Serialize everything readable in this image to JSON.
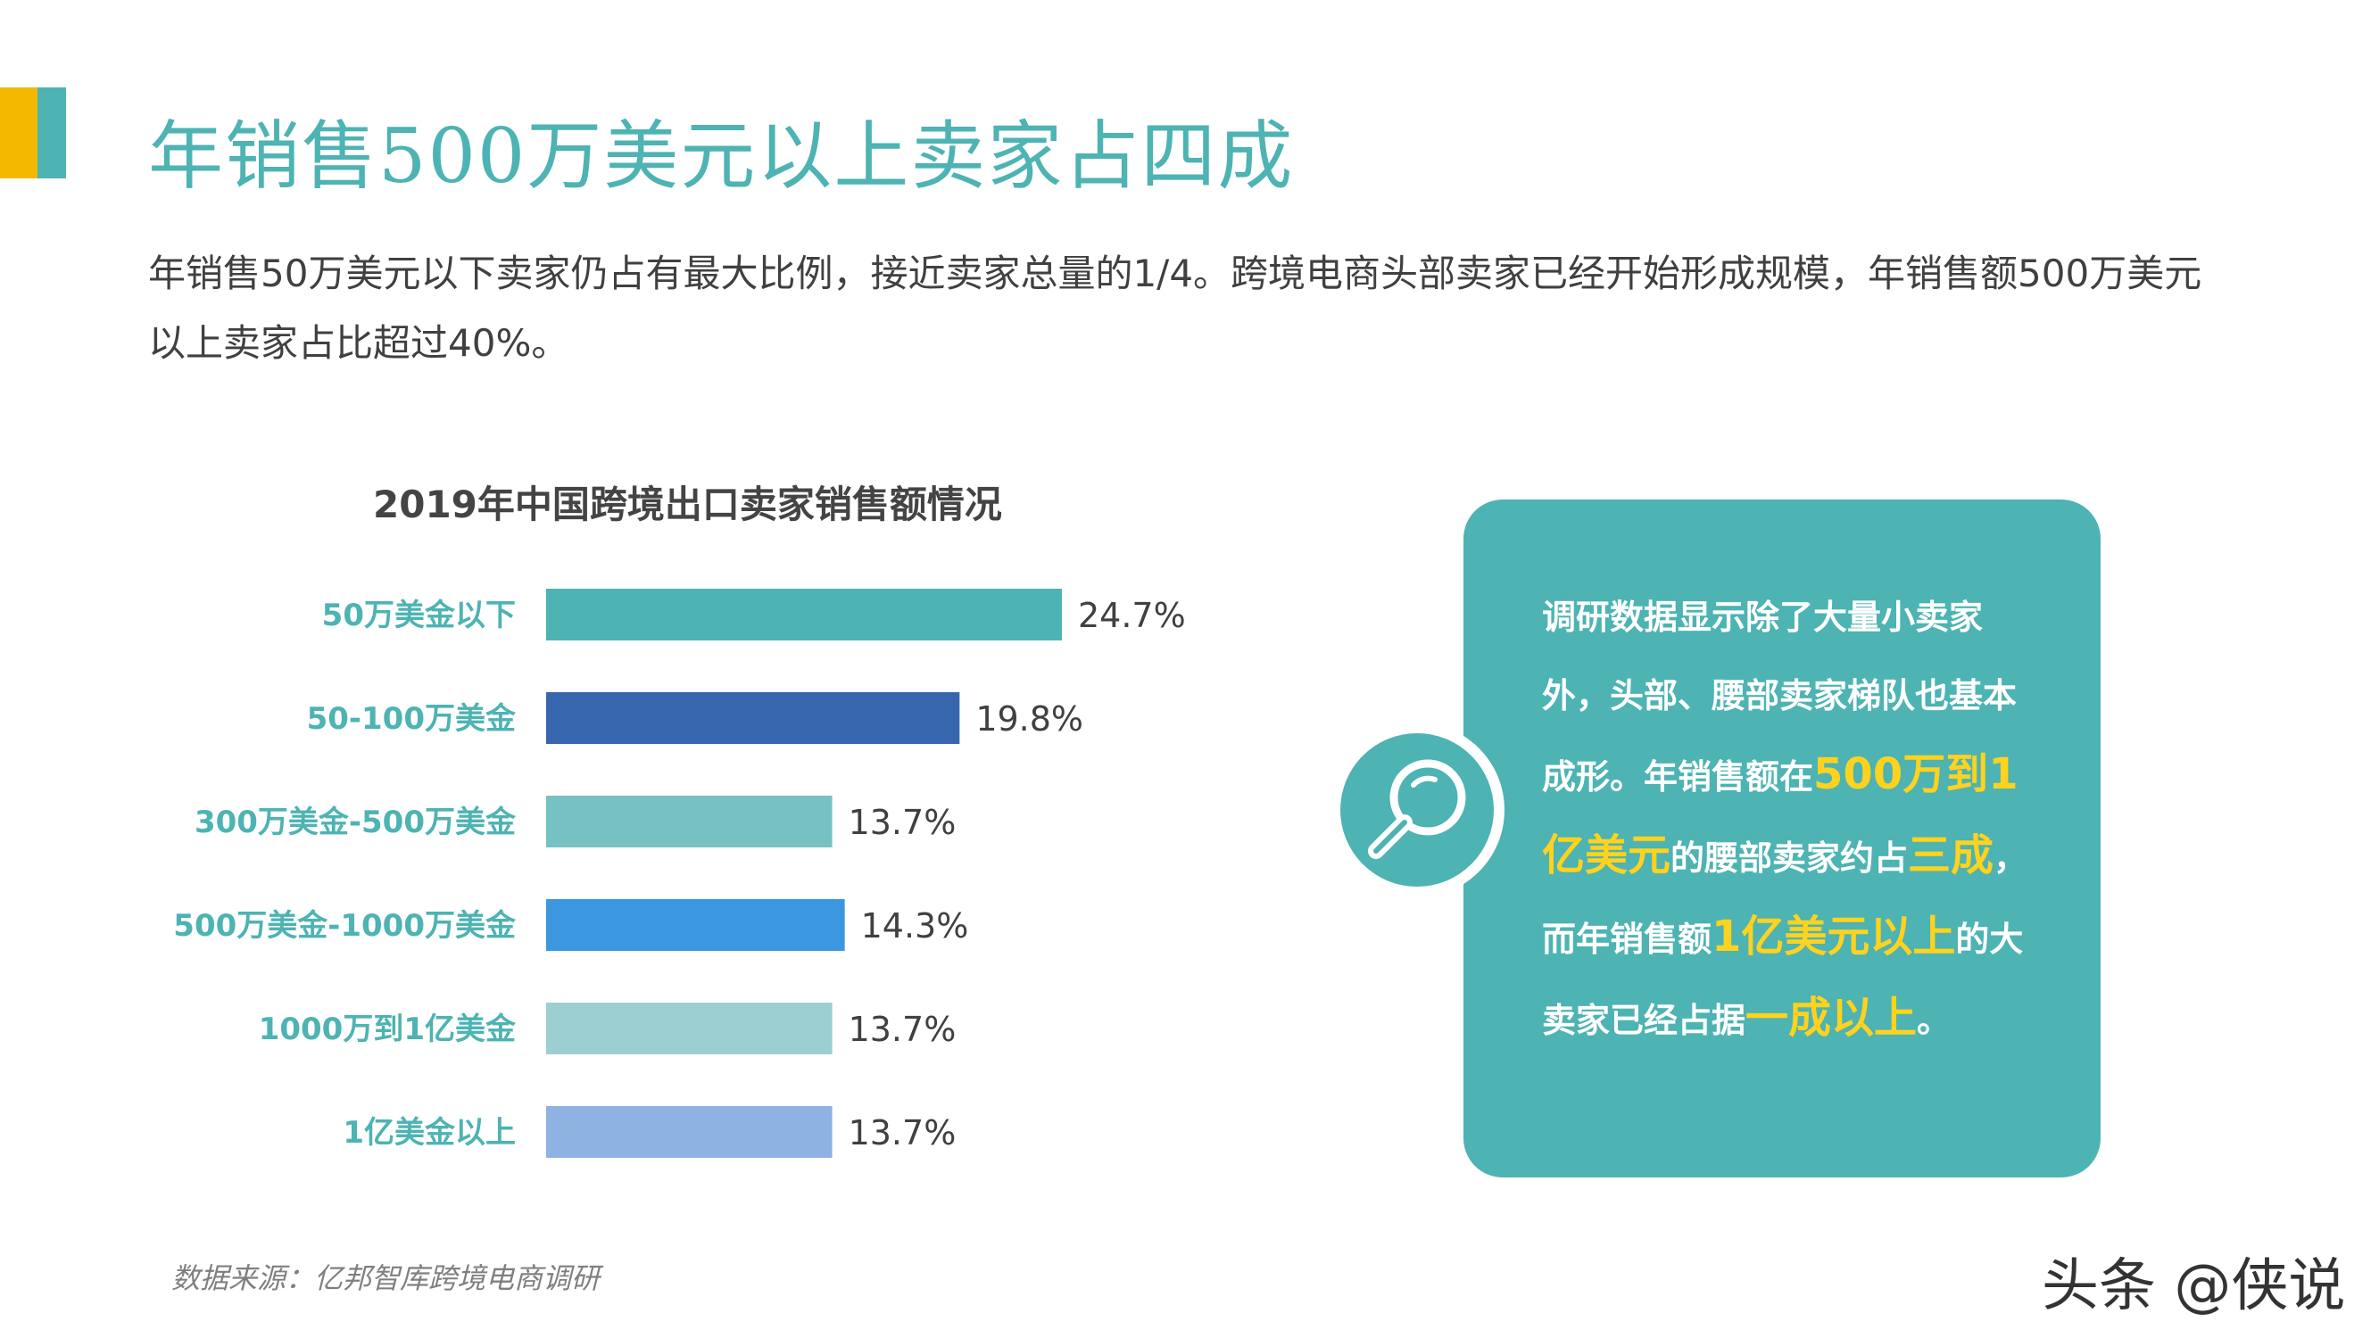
{
  "header": {
    "title": "年销售500万美元以上卖家占四成",
    "intro": "年销售50万美元以下卖家仍占有最大比例，接近卖家总量的1/4。跨境电商头部卖家已经开始形成规模，年销售额500万美元以上卖家占比超过40%。"
  },
  "colors": {
    "accent": "#4DB3B3",
    "yellow": "#F5B800",
    "highlight": "#FFD21E"
  },
  "chart_data": {
    "type": "bar",
    "orientation": "horizontal",
    "title": "2019年中国跨境出口卖家销售额情况",
    "categories": [
      "50万美金以下",
      "50-100万美金",
      "300万美金-500万美金",
      "500万美金-1000万美金",
      "1000万到1亿美金",
      "1亿美金以上"
    ],
    "values": [
      24.7,
      19.8,
      13.7,
      14.3,
      13.7,
      13.7
    ],
    "value_labels": [
      "24.7%",
      "19.8%",
      "13.7%",
      "14.3%",
      "13.7%",
      "13.7%"
    ],
    "bar_colors": [
      "#4DB3B3",
      "#3766AE",
      "#76C2C2",
      "#3B97DF",
      "#9BCFD2",
      "#8EB2E2"
    ],
    "unit": "%",
    "xlim": [
      0,
      25
    ],
    "grid": false,
    "legend": "none"
  },
  "info_box": {
    "icon": "magnifier-icon",
    "part1": "调研数据显示除了大量小卖家外，头部、腰部卖家梯队也基本成形。年销售额在",
    "hl1": "500万到1亿美元",
    "part2": "的腰部卖家约占",
    "hl2": "三成",
    "part3": "，而年销售额",
    "hl3": "1亿美元以上",
    "part4": "的大卖家已经占据",
    "hl4": "一成以上",
    "part5": "。"
  },
  "footer": {
    "source": "数据来源：亿邦智库跨境电商调研",
    "watermark": "头条 @侠说"
  }
}
